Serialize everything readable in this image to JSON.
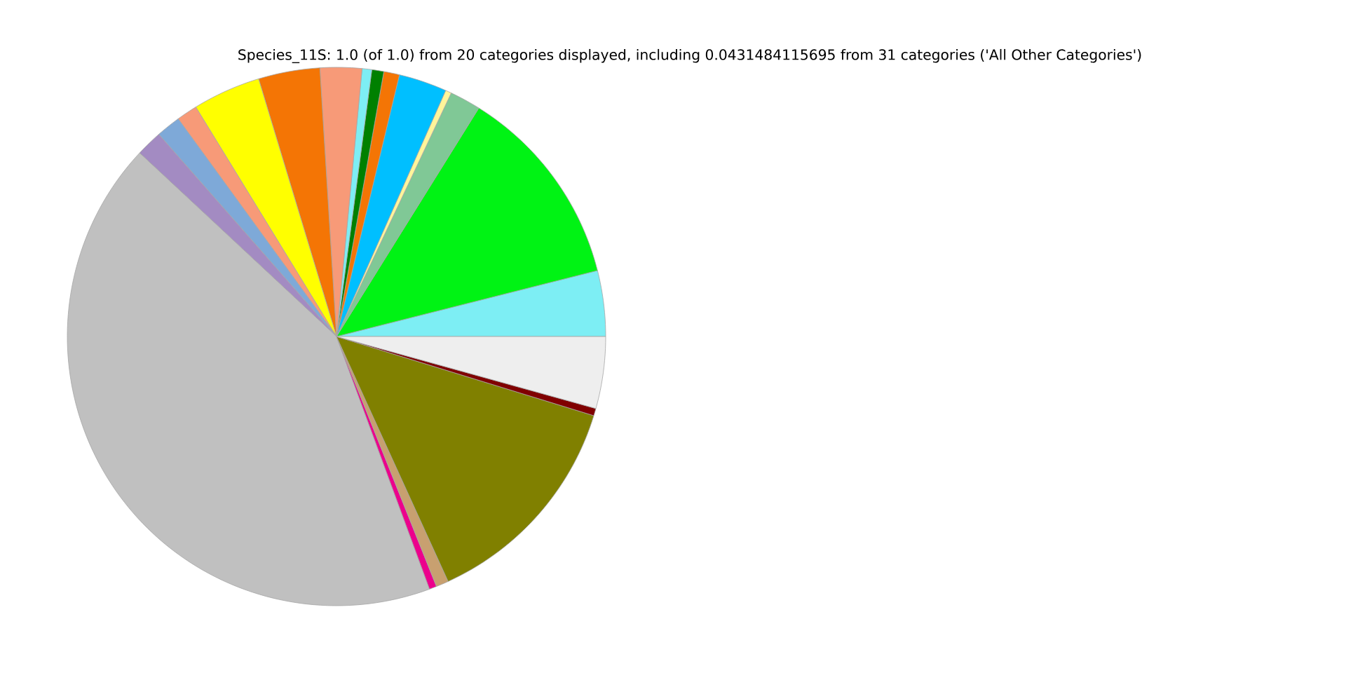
{
  "chart_data": {
    "type": "pie",
    "title": "Species_11S: 1.0 (of 1.0) from 20 categories displayed, including 0.0431484115695 from 31 categories ('All Other Categories')",
    "categories": [
      null,
      null,
      null,
      null,
      null,
      null,
      null,
      null,
      null,
      null,
      null,
      null,
      null,
      null,
      null,
      null,
      null,
      null,
      null,
      null
    ],
    "values": [
      3.94,
      12.19,
      1.86,
      0.36,
      2.89,
      0.94,
      0.72,
      0.58,
      2.5,
      3.69,
      4.08,
      1.25,
      1.47,
      1.58,
      42.55,
      0.44,
      0.75,
      13.44,
      0.44,
      4.31
    ],
    "colors": [
      "#7deef4",
      "#00f314",
      "#80c896",
      "#fff59a",
      "#00bfff",
      "#f47505",
      "#008000",
      "#7deef4",
      "#f79a78",
      "#f47505",
      "#ffff00",
      "#f79a78",
      "#7ea9d8",
      "#a38bc2",
      "#c0c0c0",
      "#ec008c",
      "#c8a070",
      "#808000",
      "#800000",
      "#eeeeee"
    ]
  }
}
